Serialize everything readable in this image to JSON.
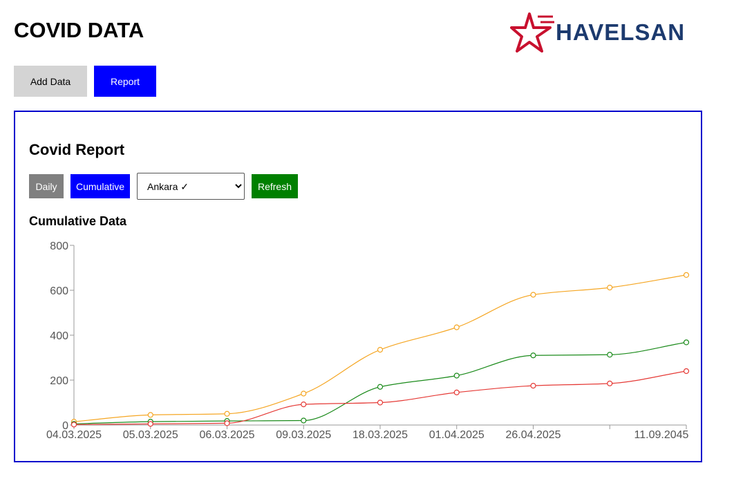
{
  "header": {
    "title": "COVID DATA",
    "logo_text": "HAVELSAN",
    "logo_colors": {
      "star": "#c8102e",
      "text": "#1c3a6e"
    }
  },
  "nav": {
    "add_data_label": "Add Data",
    "report_label": "Report"
  },
  "report": {
    "title": "Covid Report",
    "daily_label": "Daily",
    "cumulative_label": "Cumulative",
    "city_select": {
      "selected": "Ankara ✓"
    },
    "refresh_label": "Refresh",
    "section_title": "Cumulative Data"
  },
  "chart_data": {
    "type": "line",
    "x": [
      "04.03.2025",
      "05.03.2025",
      "06.03.2025",
      "09.03.2025",
      "18.03.2025",
      "01.04.2025",
      "26.04.2025",
      "",
      "11.09.2045"
    ],
    "ylim": [
      0,
      800
    ],
    "yticks": [
      0,
      200,
      400,
      600,
      800
    ],
    "series": [
      {
        "color": "#f5a623",
        "values": [
          15,
          45,
          50,
          140,
          335,
          435,
          580,
          612,
          668
        ]
      },
      {
        "color": "#1a8a1a",
        "values": [
          5,
          15,
          18,
          20,
          170,
          220,
          310,
          313,
          368
        ]
      },
      {
        "color": "#e53935",
        "values": [
          2,
          5,
          8,
          92,
          100,
          145,
          175,
          185,
          240
        ]
      }
    ]
  }
}
